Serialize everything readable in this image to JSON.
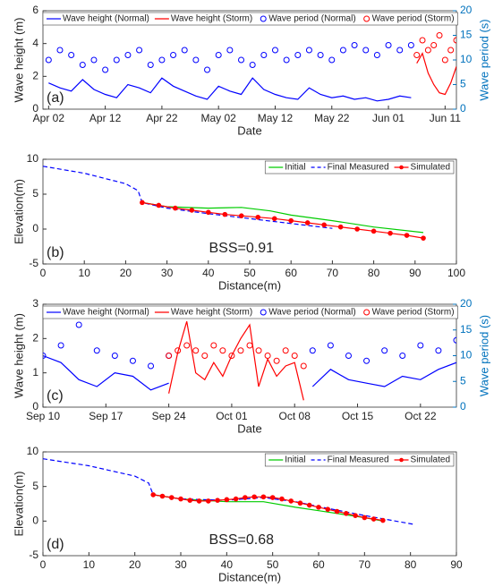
{
  "chart_data": [
    {
      "type": "line",
      "panel_label": "(a)",
      "x_label": "Date",
      "y_label": "Wave height (m)",
      "y2_label": "Wave period (s)",
      "x_type": "date",
      "xlim": [
        "04-01",
        "06-13"
      ],
      "xticks": [
        {
          "value": "04-02",
          "label": "Apr 02"
        },
        {
          "value": "04-12",
          "label": "Apr 12"
        },
        {
          "value": "04-22",
          "label": "Apr 22"
        },
        {
          "value": "05-02",
          "label": "May 02"
        },
        {
          "value": "05-12",
          "label": "May 12"
        },
        {
          "value": "05-22",
          "label": "May 22"
        },
        {
          "value": "06-01",
          "label": "Jun 01"
        },
        {
          "value": "06-11",
          "label": "Jun 11"
        }
      ],
      "ylim": [
        0,
        6
      ],
      "yticks": [
        0,
        2,
        4,
        6
      ],
      "y2lim": [
        0,
        20
      ],
      "y2ticks": [
        0,
        5,
        10,
        15,
        20
      ],
      "legend": "top",
      "grid": false,
      "series": [
        {
          "name": "Wave height (Normal)",
          "color": "#0000ff",
          "style": "line",
          "x": [
            "04-02",
            "04-04",
            "04-06",
            "04-08",
            "04-10",
            "04-12",
            "04-14",
            "04-16",
            "04-18",
            "04-20",
            "04-22",
            "04-24",
            "04-26",
            "04-28",
            "04-30",
            "05-02",
            "05-04",
            "05-06",
            "05-08",
            "05-10",
            "05-12",
            "05-14",
            "05-16",
            "05-18",
            "05-20",
            "05-22",
            "05-24",
            "05-26",
            "05-28",
            "05-30",
            "06-01",
            "06-03",
            "06-05"
          ],
          "values": [
            1.6,
            1.3,
            1.1,
            1.8,
            1.2,
            0.9,
            0.7,
            1.5,
            1.3,
            1.0,
            1.9,
            1.4,
            1.1,
            0.8,
            0.6,
            1.4,
            1.1,
            0.9,
            1.9,
            1.2,
            0.9,
            0.7,
            0.6,
            1.3,
            0.9,
            0.7,
            0.8,
            0.6,
            0.7,
            0.5,
            0.6,
            0.8,
            0.7
          ]
        },
        {
          "name": "Wave height (Storm)",
          "color": "#ff0000",
          "style": "line",
          "x": [
            "06-06",
            "06-07",
            "06-08",
            "06-09",
            "06-10",
            "06-11",
            "06-12",
            "06-13"
          ],
          "values": [
            2.8,
            3.4,
            2.2,
            1.5,
            1.0,
            0.9,
            1.6,
            2.6
          ]
        },
        {
          "name": "Wave period (Normal)",
          "color": "#0000ff",
          "style": "markers",
          "axis": "y2",
          "x": [
            "04-02",
            "04-04",
            "04-06",
            "04-08",
            "04-10",
            "04-12",
            "04-14",
            "04-16",
            "04-18",
            "04-20",
            "04-22",
            "04-24",
            "04-26",
            "04-28",
            "04-30",
            "05-02",
            "05-04",
            "05-06",
            "05-08",
            "05-10",
            "05-12",
            "05-14",
            "05-16",
            "05-18",
            "05-20",
            "05-22",
            "05-24",
            "05-26",
            "05-28",
            "05-30",
            "06-01",
            "06-03",
            "06-05"
          ],
          "values": [
            10,
            12,
            11,
            9,
            10,
            8,
            10,
            11,
            12,
            9,
            10,
            11,
            12,
            10,
            8,
            11,
            12,
            10,
            9,
            11,
            12,
            10,
            11,
            12,
            11,
            10,
            12,
            13,
            12,
            11,
            13,
            12,
            13
          ]
        },
        {
          "name": "Wave period (Storm)",
          "color": "#ff0000",
          "style": "markers",
          "axis": "y2",
          "x": [
            "06-06",
            "06-07",
            "06-08",
            "06-09",
            "06-10",
            "06-11",
            "06-12",
            "06-13"
          ],
          "values": [
            11,
            14,
            12,
            13,
            15,
            10,
            12,
            14
          ]
        }
      ]
    },
    {
      "type": "line",
      "panel_label": "(b)",
      "annotation": "BSS=0.91",
      "x_label": "Distance(m)",
      "y_label": "Elevation(m)",
      "x_type": "number",
      "xlim": [
        0,
        100
      ],
      "xticks": [
        0,
        10,
        20,
        30,
        40,
        50,
        60,
        70,
        80,
        90,
        100
      ],
      "ylim": [
        -5,
        10
      ],
      "yticks": [
        -5,
        0,
        5,
        10
      ],
      "legend": "top-right",
      "grid": false,
      "series": [
        {
          "name": "Initial",
          "color": "#00cc00",
          "style": "line",
          "x": [
            24,
            30,
            40,
            48,
            55,
            60,
            70,
            80,
            92
          ],
          "values": [
            3.8,
            3.2,
            3.0,
            3.1,
            2.6,
            2.0,
            1.2,
            0.3,
            -0.5
          ]
        },
        {
          "name": "Final Measured",
          "color": "#0000ff",
          "style": "dashed",
          "x": [
            0,
            10,
            20,
            23,
            24,
            30,
            40,
            50,
            60,
            70
          ],
          "values": [
            9,
            8,
            6.5,
            5.5,
            3.8,
            3.0,
            2.2,
            1.5,
            0.8,
            0.1
          ]
        },
        {
          "name": "Simulated",
          "color": "#ff0000",
          "style": "line-markers",
          "x": [
            24,
            28,
            32,
            36,
            40,
            44,
            48,
            52,
            56,
            60,
            64,
            68,
            72,
            76,
            80,
            84,
            88,
            92
          ],
          "values": [
            3.8,
            3.4,
            3.0,
            2.7,
            2.4,
            2.1,
            1.9,
            1.7,
            1.5,
            1.2,
            0.9,
            0.6,
            0.3,
            0.0,
            -0.3,
            -0.6,
            -0.9,
            -1.3
          ]
        }
      ]
    },
    {
      "type": "line",
      "panel_label": "(c)",
      "x_label": "Date",
      "y_label": "Wave height (m)",
      "y2_label": "Wave period (s)",
      "x_type": "date",
      "xlim": [
        "09-10",
        "10-26"
      ],
      "xticks": [
        {
          "value": "09-10",
          "label": "Sep 10"
        },
        {
          "value": "09-17",
          "label": "Sep 17"
        },
        {
          "value": "09-24",
          "label": "Sep 24"
        },
        {
          "value": "10-01",
          "label": "Oct 01"
        },
        {
          "value": "10-08",
          "label": "Oct 08"
        },
        {
          "value": "10-15",
          "label": "Oct 15"
        },
        {
          "value": "10-22",
          "label": "Oct 22"
        }
      ],
      "ylim": [
        0,
        3
      ],
      "yticks": [
        0,
        1,
        2,
        3
      ],
      "y2lim": [
        0,
        20
      ],
      "y2ticks": [
        0,
        5,
        10,
        15,
        20
      ],
      "legend": "top",
      "grid": false,
      "series": [
        {
          "name": "Wave height (Normal)",
          "color": "#0000ff",
          "style": "line",
          "x": [
            "09-10",
            "09-12",
            "09-14",
            "09-16",
            "09-18",
            "09-20",
            "09-22",
            "09-24",
            "10-01",
            "10-10",
            "10-12",
            "10-14",
            "10-16",
            "10-18",
            "10-20",
            "10-22",
            "10-24",
            "10-26"
          ],
          "values": [
            1.5,
            1.3,
            0.8,
            0.6,
            1.0,
            0.9,
            0.5,
            0.7,
            null,
            0.6,
            1.1,
            0.8,
            0.7,
            0.6,
            0.9,
            0.8,
            1.1,
            1.3
          ]
        },
        {
          "name": "Wave height (Storm)",
          "color": "#ff0000",
          "style": "line",
          "x": [
            "09-24",
            "09-25",
            "09-26",
            "09-27",
            "09-28",
            "09-29",
            "09-30",
            "10-01",
            "10-02",
            "10-03",
            "10-04",
            "10-05",
            "10-06",
            "10-07",
            "10-08",
            "10-09"
          ],
          "values": [
            0.4,
            1.6,
            2.5,
            1.0,
            0.8,
            1.3,
            0.9,
            1.5,
            2.0,
            2.4,
            0.6,
            1.4,
            0.9,
            1.2,
            1.3,
            0.2
          ]
        },
        {
          "name": "Wave period (Normal)",
          "color": "#0000ff",
          "style": "markers",
          "axis": "y2",
          "x": [
            "09-10",
            "09-12",
            "09-14",
            "09-16",
            "09-18",
            "09-20",
            "09-22",
            "09-24",
            "10-01",
            "10-10",
            "10-12",
            "10-14",
            "10-16",
            "10-18",
            "10-20",
            "10-22",
            "10-24",
            "10-26"
          ],
          "values": [
            10,
            12,
            16,
            11,
            10,
            9,
            8,
            10,
            null,
            11,
            12,
            10,
            9,
            11,
            10,
            12,
            11,
            13
          ]
        },
        {
          "name": "Wave period (Storm)",
          "color": "#ff0000",
          "style": "markers",
          "axis": "y2",
          "x": [
            "09-24",
            "09-25",
            "09-26",
            "09-27",
            "09-28",
            "09-29",
            "09-30",
            "10-01",
            "10-02",
            "10-03",
            "10-04",
            "10-05",
            "10-06",
            "10-07",
            "10-08",
            "10-09"
          ],
          "values": [
            10,
            11,
            12,
            11,
            10,
            12,
            11,
            10,
            11,
            12,
            11,
            10,
            9,
            11,
            10,
            8
          ]
        }
      ]
    },
    {
      "type": "line",
      "panel_label": "(d)",
      "annotation": "BSS=0.68",
      "x_label": "Distance(m)",
      "y_label": "Elevation(m)",
      "x_type": "number",
      "xlim": [
        0,
        90
      ],
      "xticks": [
        0,
        10,
        20,
        30,
        40,
        50,
        60,
        70,
        80,
        90
      ],
      "ylim": [
        -5,
        10
      ],
      "yticks": [
        -5,
        0,
        5,
        10
      ],
      "legend": "top-right",
      "grid": false,
      "series": [
        {
          "name": "Initial",
          "color": "#00cc00",
          "style": "line",
          "x": [
            24,
            30,
            40,
            48,
            55,
            60,
            70,
            74
          ],
          "values": [
            3.8,
            3.2,
            2.8,
            2.8,
            2.0,
            1.5,
            0.5,
            0.0
          ]
        },
        {
          "name": "Final Measured",
          "color": "#0000ff",
          "style": "dashed",
          "x": [
            0,
            10,
            20,
            23,
            24,
            30,
            40,
            48,
            55,
            60,
            70,
            81
          ],
          "values": [
            9,
            8,
            6.5,
            5.5,
            3.8,
            3.2,
            3.0,
            3.4,
            2.8,
            2.1,
            0.8,
            -0.5
          ]
        },
        {
          "name": "Simulated",
          "color": "#ff0000",
          "style": "line-markers",
          "x": [
            24,
            26,
            28,
            30,
            32,
            34,
            36,
            38,
            40,
            42,
            44,
            46,
            48,
            50,
            52,
            54,
            56,
            58,
            60,
            62,
            64,
            66,
            68,
            70,
            72,
            74
          ],
          "values": [
            3.8,
            3.6,
            3.4,
            3.2,
            3.0,
            2.9,
            2.9,
            3.0,
            3.1,
            3.2,
            3.4,
            3.5,
            3.5,
            3.4,
            3.2,
            2.9,
            2.6,
            2.3,
            2.0,
            1.7,
            1.4,
            1.1,
            0.8,
            0.5,
            0.3,
            0.1
          ]
        }
      ]
    }
  ]
}
